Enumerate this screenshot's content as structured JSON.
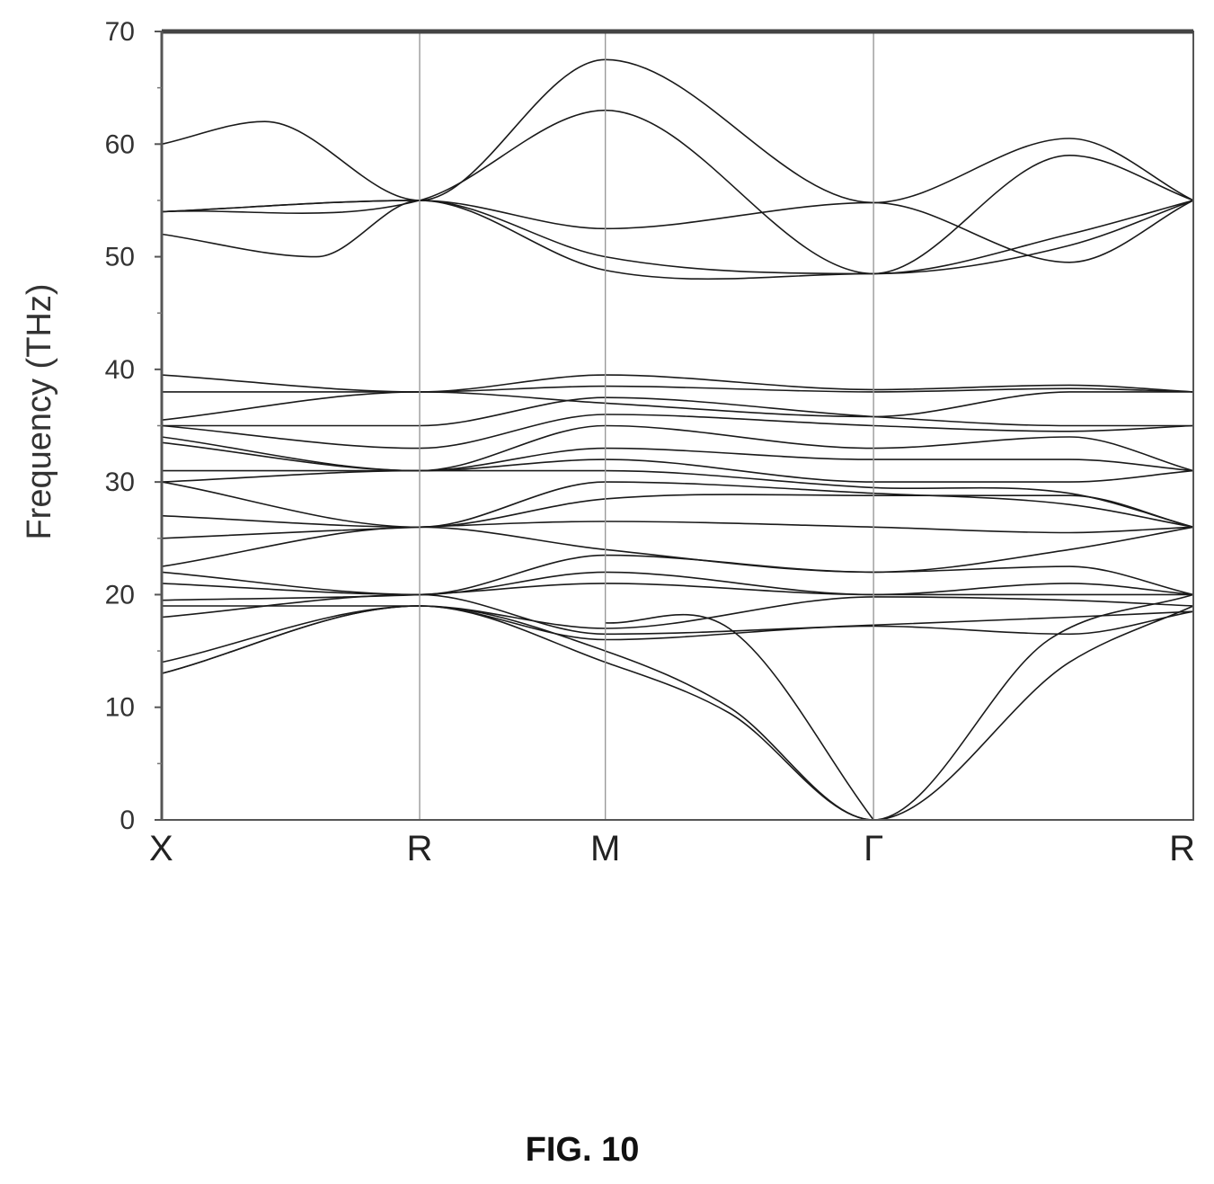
{
  "figure": {
    "caption": "FIG. 10"
  },
  "chart_data": {
    "type": "line",
    "title": "",
    "xlabel": "",
    "ylabel": "Frequency (THz)",
    "ylim": [
      0,
      70
    ],
    "yticks": [
      0,
      10,
      20,
      30,
      40,
      50,
      60,
      70
    ],
    "grid": false,
    "k_points": [
      {
        "label": "X",
        "x": 0.0
      },
      {
        "label": "R",
        "x": 0.25
      },
      {
        "label": "M",
        "x": 0.43
      },
      {
        "label": "Γ",
        "x": 0.69
      },
      {
        "label": "R",
        "x": 1.0
      }
    ],
    "series": [
      {
        "values": [
          [
            0,
            60
          ],
          [
            0.1,
            62
          ],
          [
            0.25,
            55
          ],
          [
            0.43,
            67.5
          ],
          [
            0.69,
            54.8
          ],
          [
            0.88,
            60.5
          ],
          [
            1,
            55
          ]
        ]
      },
      {
        "values": [
          [
            0,
            54
          ],
          [
            0.25,
            55
          ],
          [
            0.43,
            63
          ],
          [
            0.69,
            48.5
          ],
          [
            0.88,
            59
          ],
          [
            1,
            55
          ]
        ]
      },
      {
        "values": [
          [
            0,
            52
          ],
          [
            0.15,
            50
          ],
          [
            0.25,
            55
          ],
          [
            0.43,
            52.5
          ],
          [
            0.69,
            54.8
          ],
          [
            0.88,
            49.5
          ],
          [
            1,
            55
          ]
        ]
      },
      {
        "values": [
          [
            0,
            54
          ],
          [
            0.25,
            55
          ],
          [
            0.43,
            50
          ],
          [
            0.69,
            48.5
          ],
          [
            0.88,
            52
          ],
          [
            1,
            55
          ]
        ]
      },
      {
        "values": [
          [
            0,
            54
          ],
          [
            0.25,
            55
          ],
          [
            0.43,
            48.8
          ],
          [
            0.69,
            48.5
          ],
          [
            0.88,
            51
          ],
          [
            1,
            55
          ]
        ]
      },
      {
        "values": [
          [
            0,
            39.5
          ],
          [
            0.25,
            38
          ],
          [
            0.43,
            39.5
          ],
          [
            0.69,
            38.2
          ],
          [
            0.88,
            38.6
          ],
          [
            1,
            38
          ]
        ]
      },
      {
        "values": [
          [
            0,
            38
          ],
          [
            0.25,
            38
          ],
          [
            0.43,
            38.5
          ],
          [
            0.69,
            38
          ],
          [
            0.88,
            38.3
          ],
          [
            1,
            38
          ]
        ]
      },
      {
        "values": [
          [
            0,
            35.5
          ],
          [
            0.25,
            38
          ],
          [
            0.43,
            37
          ],
          [
            0.69,
            35.8
          ],
          [
            0.88,
            38
          ],
          [
            1,
            38
          ]
        ]
      },
      {
        "values": [
          [
            0,
            35
          ],
          [
            0.25,
            35
          ],
          [
            0.43,
            37.5
          ],
          [
            0.69,
            35.8
          ],
          [
            0.88,
            35
          ],
          [
            1,
            35
          ]
        ]
      },
      {
        "values": [
          [
            0,
            35
          ],
          [
            0.25,
            33
          ],
          [
            0.43,
            36
          ],
          [
            0.69,
            35
          ],
          [
            0.88,
            34.5
          ],
          [
            1,
            35
          ]
        ]
      },
      {
        "values": [
          [
            0,
            34
          ],
          [
            0.25,
            31
          ],
          [
            0.43,
            35
          ],
          [
            0.69,
            33
          ],
          [
            0.88,
            34
          ],
          [
            1,
            31
          ]
        ]
      },
      {
        "values": [
          [
            0,
            33.5
          ],
          [
            0.25,
            31
          ],
          [
            0.43,
            33
          ],
          [
            0.69,
            32
          ],
          [
            0.88,
            32
          ],
          [
            1,
            31
          ]
        ]
      },
      {
        "values": [
          [
            0,
            31
          ],
          [
            0.25,
            31
          ],
          [
            0.43,
            32
          ],
          [
            0.69,
            30
          ],
          [
            0.88,
            30
          ],
          [
            1,
            31
          ]
        ]
      },
      {
        "values": [
          [
            0,
            30
          ],
          [
            0.25,
            31
          ],
          [
            0.43,
            31
          ],
          [
            0.69,
            29.5
          ],
          [
            0.88,
            29
          ],
          [
            1,
            26
          ]
        ]
      },
      {
        "values": [
          [
            0,
            30
          ],
          [
            0.25,
            26
          ],
          [
            0.43,
            30
          ],
          [
            0.69,
            29
          ],
          [
            0.88,
            28
          ],
          [
            1,
            26
          ]
        ]
      },
      {
        "values": [
          [
            0,
            27
          ],
          [
            0.25,
            26
          ],
          [
            0.43,
            28.5
          ],
          [
            0.69,
            28.8
          ],
          [
            0.88,
            28.8
          ],
          [
            1,
            26
          ]
        ]
      },
      {
        "values": [
          [
            0,
            25
          ],
          [
            0.25,
            26
          ],
          [
            0.43,
            26.5
          ],
          [
            0.69,
            26
          ],
          [
            0.88,
            25.5
          ],
          [
            1,
            26
          ]
        ]
      },
      {
        "values": [
          [
            0,
            22.5
          ],
          [
            0.25,
            26
          ],
          [
            0.43,
            24
          ],
          [
            0.69,
            22
          ],
          [
            0.88,
            24
          ],
          [
            1,
            26
          ]
        ]
      },
      {
        "values": [
          [
            0,
            22
          ],
          [
            0.25,
            20
          ],
          [
            0.43,
            23.5
          ],
          [
            0.69,
            22
          ],
          [
            0.88,
            22.5
          ],
          [
            1,
            20
          ]
        ]
      },
      {
        "values": [
          [
            0,
            21
          ],
          [
            0.25,
            20
          ],
          [
            0.43,
            22
          ],
          [
            0.69,
            20
          ],
          [
            0.88,
            21
          ],
          [
            1,
            20
          ]
        ]
      },
      {
        "values": [
          [
            0,
            19.5
          ],
          [
            0.25,
            20
          ],
          [
            0.43,
            21
          ],
          [
            0.69,
            20
          ],
          [
            0.88,
            20
          ],
          [
            1,
            20
          ]
        ]
      },
      {
        "values": [
          [
            0,
            19
          ],
          [
            0.25,
            19
          ],
          [
            0.43,
            17
          ],
          [
            0.69,
            19.8
          ],
          [
            0.88,
            19.5
          ],
          [
            1,
            19
          ]
        ]
      },
      {
        "values": [
          [
            0,
            18
          ],
          [
            0.25,
            20
          ],
          [
            0.43,
            16.5
          ],
          [
            0.69,
            17.3
          ],
          [
            0.88,
            18
          ],
          [
            1,
            18.5
          ]
        ]
      },
      {
        "values": [
          [
            0,
            14
          ],
          [
            0.25,
            19
          ],
          [
            0.43,
            16
          ],
          [
            0.69,
            17.2
          ],
          [
            0.88,
            16.5
          ],
          [
            1,
            18.5
          ]
        ]
      },
      {
        "values": [
          [
            0,
            13
          ],
          [
            0.25,
            19
          ],
          [
            0.43,
            15
          ],
          [
            0.55,
            10
          ],
          [
            0.69,
            0
          ],
          [
            0.88,
            14
          ],
          [
            1,
            19
          ]
        ]
      },
      {
        "values": [
          [
            0,
            13
          ],
          [
            0.25,
            19
          ],
          [
            0.43,
            14
          ],
          [
            0.55,
            9.5
          ],
          [
            0.69,
            0
          ],
          [
            0.86,
            16
          ],
          [
            1,
            20
          ]
        ]
      },
      {
        "values": [
          [
            0.43,
            17.5
          ],
          [
            0.55,
            17
          ],
          [
            0.69,
            0
          ]
        ]
      }
    ]
  }
}
